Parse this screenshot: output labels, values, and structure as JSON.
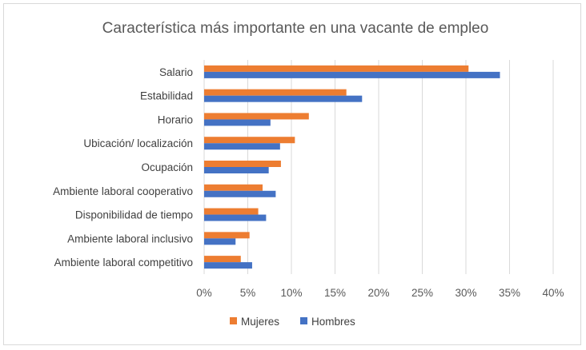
{
  "chart_data": {
    "type": "bar",
    "orientation": "horizontal",
    "title": "Característica más importante en una vacante de empleo",
    "categories": [
      "Salario",
      "Estabilidad",
      "Horario",
      "Ubicación/ localización",
      "Ocupación",
      "Ambiente laboral cooperativo",
      "Disponibilidad de tiempo",
      "Ambiente laboral inclusivo",
      "Ambiente laboral competitivo"
    ],
    "series": [
      {
        "name": "Mujeres",
        "color": "#ed7d31",
        "values": [
          30.3,
          16.3,
          12.0,
          10.4,
          8.8,
          6.7,
          6.2,
          5.2,
          4.2
        ]
      },
      {
        "name": "Hombres",
        "color": "#4472c4",
        "values": [
          33.9,
          18.1,
          7.6,
          8.7,
          7.4,
          8.2,
          7.1,
          3.6,
          5.5
        ]
      }
    ],
    "xlim": [
      0,
      40
    ],
    "xticks": [
      "0%",
      "5%",
      "10%",
      "15%",
      "20%",
      "25%",
      "30%",
      "35%",
      "40%"
    ],
    "grid": true,
    "legend": "bottom"
  }
}
